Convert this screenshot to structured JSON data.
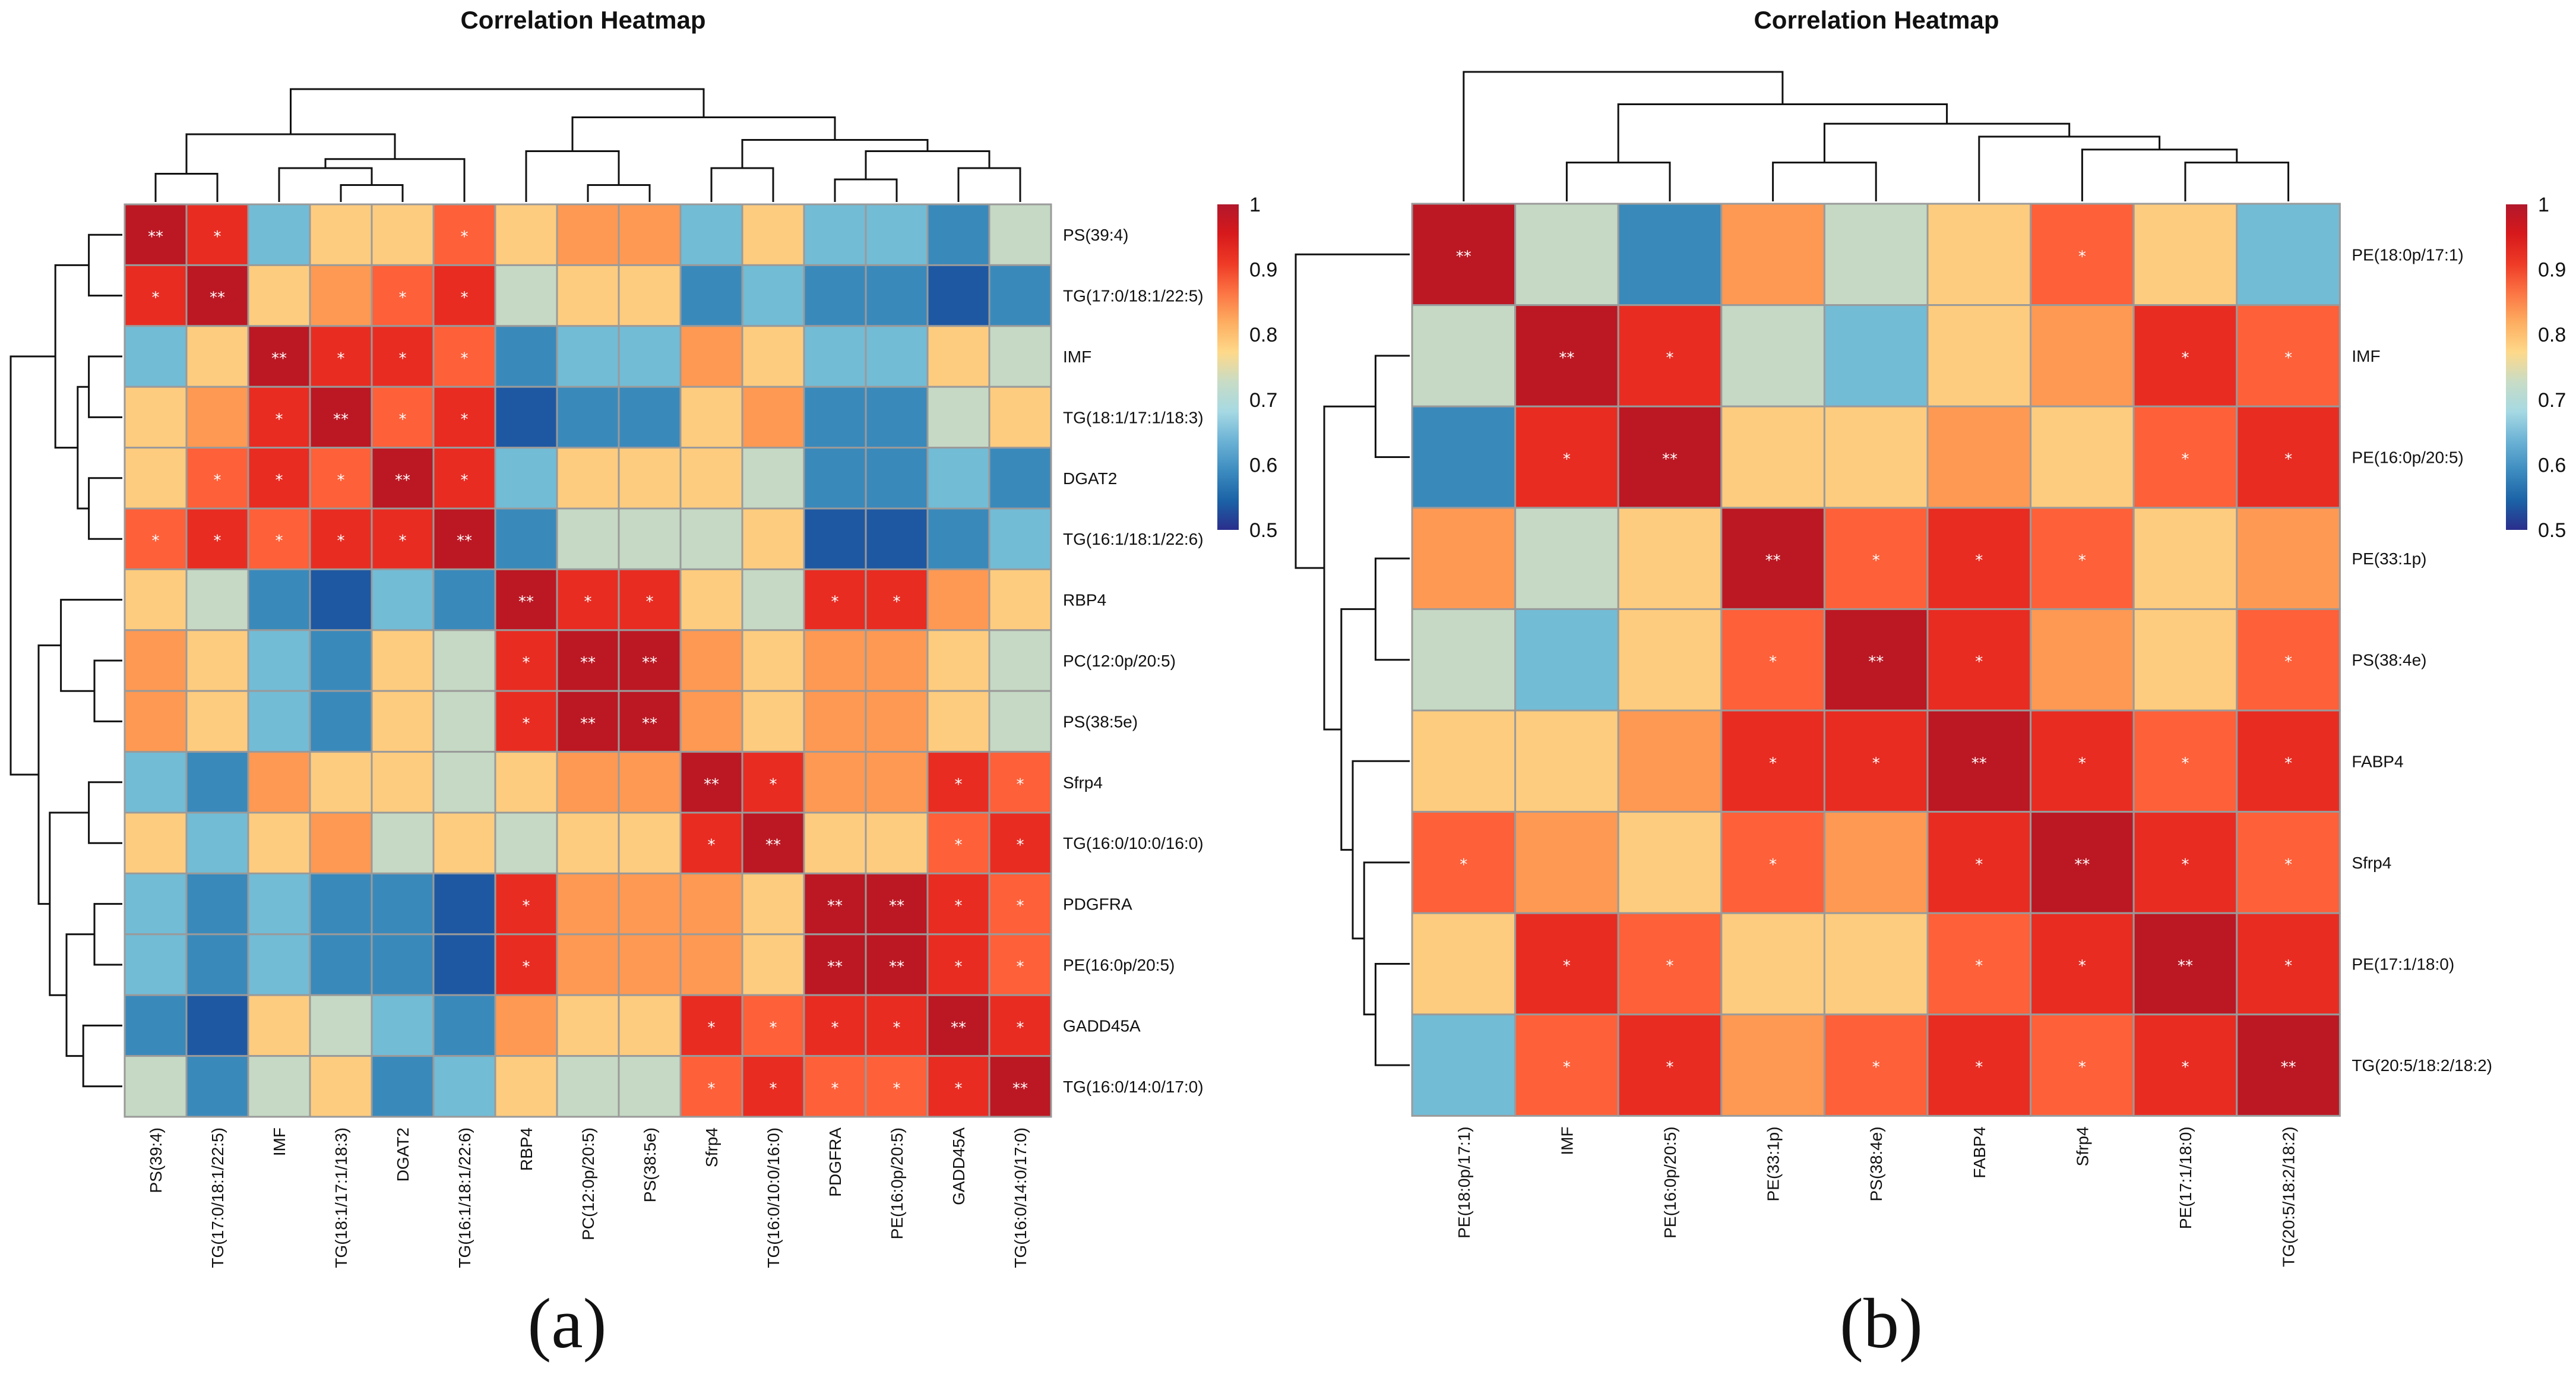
{
  "chart_data": [
    {
      "type": "heatmap",
      "title": "Correlation Heatmap",
      "panel_label": "(a)",
      "rows": [
        "PS(39:4)",
        "TG(17:0/18:1/22:5)",
        "IMF",
        "TG(18:1/17:1/18:3)",
        "DGAT2",
        "TG(16:1/18:1/22:6)",
        "RBP4",
        "PC(12:0p/20:5)",
        "PS(38:5e)",
        "Sfrp4",
        "TG(16:0/10:0/16:0)",
        "PDGFRA",
        "PE(16:0p/20:5)",
        "GADD45A",
        "TG(16:0/14:0/17:0)"
      ],
      "columns": [
        "PS(39:4)",
        "TG(17:0/18:1/22:5)",
        "IMF",
        "TG(18:1/17:1/18:3)",
        "DGAT2",
        "TG(16:1/18:1/22:6)",
        "RBP4",
        "PC(12:0p/20:5)",
        "PS(38:5e)",
        "Sfrp4",
        "TG(16:0/10:0/16:0)",
        "PDGFRA",
        "PE(16:0p/20:5)",
        "GADD45A",
        "TG(16:0/14:0/17:0)"
      ],
      "values": [
        [
          0.97,
          0.92,
          0.67,
          0.77,
          0.77,
          0.87,
          0.77,
          0.82,
          0.82,
          0.67,
          0.77,
          0.67,
          0.67,
          0.62,
          0.72
        ],
        [
          0.92,
          0.97,
          0.77,
          0.82,
          0.87,
          0.92,
          0.72,
          0.77,
          0.77,
          0.62,
          0.67,
          0.62,
          0.62,
          0.57,
          0.62
        ],
        [
          0.67,
          0.77,
          0.97,
          0.92,
          0.92,
          0.87,
          0.62,
          0.67,
          0.67,
          0.82,
          0.77,
          0.67,
          0.67,
          0.77,
          0.72
        ],
        [
          0.77,
          0.82,
          0.92,
          0.97,
          0.87,
          0.92,
          0.57,
          0.62,
          0.62,
          0.77,
          0.82,
          0.62,
          0.62,
          0.72,
          0.77
        ],
        [
          0.77,
          0.87,
          0.92,
          0.87,
          0.97,
          0.92,
          0.67,
          0.77,
          0.77,
          0.77,
          0.72,
          0.62,
          0.62,
          0.67,
          0.62
        ],
        [
          0.87,
          0.92,
          0.87,
          0.92,
          0.92,
          0.97,
          0.62,
          0.72,
          0.72,
          0.72,
          0.77,
          0.57,
          0.57,
          0.62,
          0.67
        ],
        [
          0.77,
          0.72,
          0.62,
          0.57,
          0.67,
          0.62,
          0.97,
          0.92,
          0.92,
          0.77,
          0.72,
          0.92,
          0.92,
          0.82,
          0.77
        ],
        [
          0.82,
          0.77,
          0.67,
          0.62,
          0.77,
          0.72,
          0.92,
          0.97,
          0.97,
          0.82,
          0.77,
          0.82,
          0.82,
          0.77,
          0.72
        ],
        [
          0.82,
          0.77,
          0.67,
          0.62,
          0.77,
          0.72,
          0.92,
          0.97,
          0.97,
          0.82,
          0.77,
          0.82,
          0.82,
          0.77,
          0.72
        ],
        [
          0.67,
          0.62,
          0.82,
          0.77,
          0.77,
          0.72,
          0.77,
          0.82,
          0.82,
          0.97,
          0.92,
          0.82,
          0.82,
          0.92,
          0.87
        ],
        [
          0.77,
          0.67,
          0.77,
          0.82,
          0.72,
          0.77,
          0.72,
          0.77,
          0.77,
          0.92,
          0.97,
          0.77,
          0.77,
          0.87,
          0.92
        ],
        [
          0.67,
          0.62,
          0.67,
          0.62,
          0.62,
          0.57,
          0.92,
          0.82,
          0.82,
          0.82,
          0.77,
          0.97,
          0.97,
          0.92,
          0.87
        ],
        [
          0.67,
          0.62,
          0.67,
          0.62,
          0.62,
          0.57,
          0.92,
          0.82,
          0.82,
          0.82,
          0.77,
          0.97,
          0.97,
          0.92,
          0.87
        ],
        [
          0.62,
          0.57,
          0.77,
          0.72,
          0.67,
          0.62,
          0.82,
          0.77,
          0.77,
          0.92,
          0.87,
          0.92,
          0.92,
          0.97,
          0.92
        ],
        [
          0.72,
          0.62,
          0.72,
          0.77,
          0.62,
          0.67,
          0.77,
          0.72,
          0.72,
          0.87,
          0.92,
          0.87,
          0.87,
          0.92,
          0.97
        ]
      ],
      "significance": [
        [
          "**",
          "*",
          "",
          "",
          "",
          "*",
          "",
          "",
          "",
          "",
          "",
          "",
          "",
          "",
          ""
        ],
        [
          "*",
          "**",
          "",
          "",
          "*",
          "*",
          "",
          "",
          "",
          "",
          "",
          "",
          "",
          "",
          ""
        ],
        [
          "",
          "",
          "**",
          "*",
          "*",
          "*",
          "",
          "",
          "",
          "",
          "",
          "",
          "",
          "",
          ""
        ],
        [
          "",
          "",
          "*",
          "**",
          "*",
          "*",
          "",
          "",
          "",
          "",
          "",
          "",
          "",
          "",
          ""
        ],
        [
          "",
          "*",
          "*",
          "*",
          "**",
          "*",
          "",
          "",
          "",
          "",
          "",
          "",
          "",
          "",
          ""
        ],
        [
          "*",
          "*",
          "*",
          "*",
          "*",
          "**",
          "",
          "",
          "",
          "",
          "",
          "",
          "",
          "",
          ""
        ],
        [
          "",
          "",
          "",
          "",
          "",
          "",
          "**",
          "*",
          "*",
          "",
          "",
          "*",
          "*",
          "",
          ""
        ],
        [
          "",
          "",
          "",
          "",
          "",
          "",
          "*",
          "**",
          "**",
          "",
          "",
          "",
          "",
          "",
          ""
        ],
        [
          "",
          "",
          "",
          "",
          "",
          "",
          "*",
          "**",
          "**",
          "",
          "",
          "",
          "",
          "",
          ""
        ],
        [
          "",
          "",
          "",
          "",
          "",
          "",
          "",
          "",
          "",
          "**",
          "*",
          "",
          "",
          "*",
          "*"
        ],
        [
          "",
          "",
          "",
          "",
          "",
          "",
          "",
          "",
          "",
          "*",
          "**",
          "",
          "",
          "*",
          "*"
        ],
        [
          "",
          "",
          "",
          "",
          "",
          "",
          "*",
          "",
          "",
          "",
          "",
          "**",
          "**",
          "*",
          "*"
        ],
        [
          "",
          "",
          "",
          "",
          "",
          "",
          "*",
          "",
          "",
          "",
          "",
          "**",
          "**",
          "*",
          "*"
        ],
        [
          "",
          "",
          "",
          "",
          "",
          "",
          "",
          "",
          "",
          "*",
          "*",
          "*",
          "*",
          "**",
          "*"
        ],
        [
          "",
          "",
          "",
          "",
          "",
          "",
          "",
          "",
          "",
          "*",
          "*",
          "*",
          "*",
          "*",
          "**"
        ]
      ],
      "colorbar": {
        "range": [
          0.5,
          1
        ],
        "ticks": [
          "1",
          "0.9",
          "0.8",
          "0.7",
          "0.6",
          "0.5"
        ],
        "placement": "right"
      },
      "grid": true
    },
    {
      "type": "heatmap",
      "title": "Correlation Heatmap",
      "panel_label": "(b)",
      "rows": [
        "PE(18:0p/17:1)",
        "IMF",
        "PE(16:0p/20:5)",
        "PE(33:1p)",
        "PS(38:4e)",
        "FABP4",
        "Sfrp4",
        "PE(17:1/18:0)",
        "TG(20:5/18:2/18:2)"
      ],
      "columns": [
        "PE(18:0p/17:1)",
        "IMF",
        "PE(16:0p/20:5)",
        "PE(33:1p)",
        "PS(38:4e)",
        "FABP4",
        "Sfrp4",
        "PE(17:1/18:0)",
        "TG(20:5/18:2/18:2)"
      ],
      "values": [
        [
          0.97,
          0.72,
          0.62,
          0.82,
          0.72,
          0.77,
          0.87,
          0.77,
          0.67
        ],
        [
          0.72,
          0.97,
          0.92,
          0.72,
          0.67,
          0.77,
          0.82,
          0.92,
          0.87
        ],
        [
          0.62,
          0.92,
          0.97,
          0.77,
          0.77,
          0.82,
          0.77,
          0.87,
          0.92
        ],
        [
          0.82,
          0.72,
          0.77,
          0.97,
          0.87,
          0.92,
          0.87,
          0.77,
          0.82
        ],
        [
          0.72,
          0.67,
          0.77,
          0.87,
          0.97,
          0.92,
          0.82,
          0.77,
          0.87
        ],
        [
          0.77,
          0.77,
          0.82,
          0.92,
          0.92,
          0.97,
          0.92,
          0.87,
          0.92
        ],
        [
          0.87,
          0.82,
          0.77,
          0.87,
          0.82,
          0.92,
          0.97,
          0.92,
          0.87
        ],
        [
          0.77,
          0.92,
          0.87,
          0.77,
          0.77,
          0.87,
          0.92,
          0.97,
          0.92
        ],
        [
          0.67,
          0.87,
          0.92,
          0.82,
          0.87,
          0.92,
          0.87,
          0.92,
          0.97
        ]
      ],
      "significance": [
        [
          "**",
          "",
          "",
          "",
          "",
          "",
          "*",
          "",
          ""
        ],
        [
          "",
          "**",
          "*",
          "",
          "",
          "",
          "",
          "*",
          "*"
        ],
        [
          "",
          "*",
          "**",
          "",
          "",
          "",
          "",
          "*",
          "*"
        ],
        [
          "",
          "",
          "",
          "**",
          "*",
          "*",
          "*",
          "",
          ""
        ],
        [
          "",
          "",
          "",
          "*",
          "**",
          "*",
          "",
          "",
          "*"
        ],
        [
          "",
          "",
          "",
          "*",
          "*",
          "**",
          "*",
          "*",
          "*"
        ],
        [
          "*",
          "",
          "",
          "*",
          "",
          "*",
          "**",
          "*",
          "*"
        ],
        [
          "",
          "*",
          "*",
          "",
          "",
          "*",
          "*",
          "**",
          "*"
        ],
        [
          "",
          "*",
          "*",
          "",
          "*",
          "*",
          "*",
          "*",
          "**"
        ]
      ],
      "colorbar": {
        "range": [
          0.5,
          1
        ],
        "ticks": [
          "1",
          "0.9",
          "0.8",
          "0.7",
          "0.6",
          "0.5"
        ],
        "placement": "right"
      },
      "grid": true
    }
  ],
  "cell_palette": [
    {
      "value": 0.97,
      "color": "#BB1823"
    },
    {
      "value": 0.92,
      "color": "#E82C22"
    },
    {
      "value": 0.87,
      "color": "#FE6039"
    },
    {
      "value": 0.82,
      "color": "#FE9953"
    },
    {
      "value": 0.77,
      "color": "#FECC7E"
    },
    {
      "value": 0.72,
      "color": "#C5D9C4"
    },
    {
      "value": 0.67,
      "color": "#72BCD6"
    },
    {
      "value": 0.62,
      "color": "#3A89BB"
    },
    {
      "value": 0.57,
      "color": "#1F58A2"
    }
  ],
  "colorbar_gradient": [
    "#B2182B",
    "#D7191C",
    "#EE3A26",
    "#FC7544",
    "#FDAE61",
    "#FED98A",
    "#C8DCC6",
    "#A6D9E3",
    "#6BB2D5",
    "#3D8CC0",
    "#1B63A6",
    "#2A2E8C"
  ]
}
